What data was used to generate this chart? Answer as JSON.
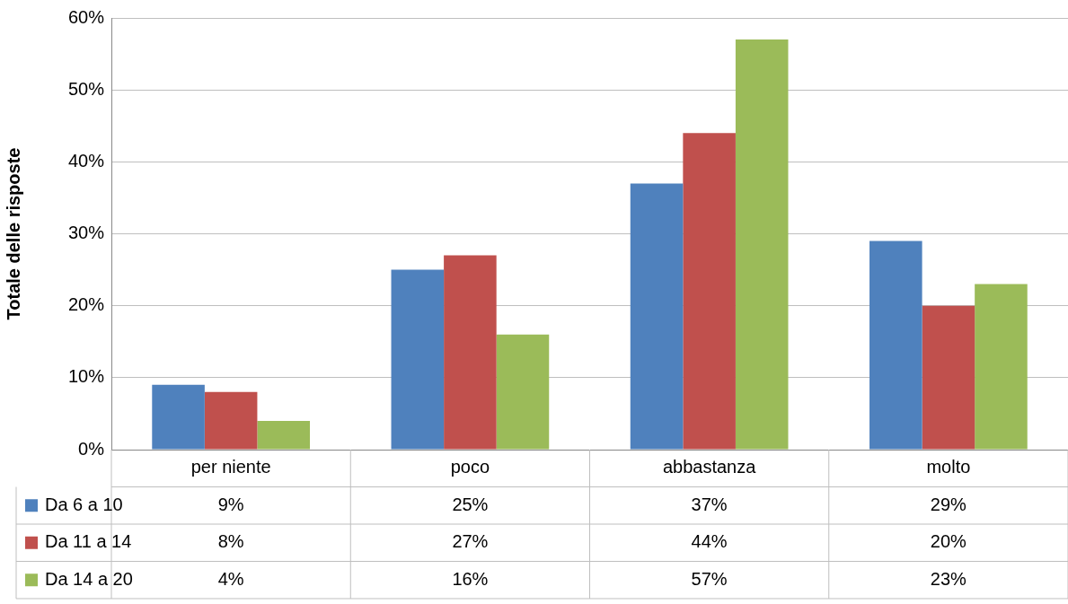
{
  "chart_data": {
    "type": "bar",
    "ylabel": "Totale delle risposte",
    "categories": [
      "per niente",
      "poco",
      "abbastanza",
      "molto"
    ],
    "series": [
      {
        "name": "Da 6 a 10",
        "color": "#4f81bd",
        "values": [
          9,
          25,
          37,
          29
        ],
        "value_labels": [
          "9%",
          "25%",
          "37%",
          "29%"
        ]
      },
      {
        "name": "Da 11 a 14",
        "color": "#c0504d",
        "values": [
          8,
          27,
          44,
          20
        ],
        "value_labels": [
          "8%",
          "27%",
          "44%",
          "20%"
        ]
      },
      {
        "name": "Da 14 a 20",
        "color": "#9bbb59",
        "values": [
          4,
          16,
          57,
          23
        ],
        "value_labels": [
          "4%",
          "16%",
          "57%",
          "23%"
        ]
      }
    ],
    "ylim": [
      0,
      60
    ],
    "yticks": [
      {
        "value": 0,
        "label": "0%"
      },
      {
        "value": 10,
        "label": "10%"
      },
      {
        "value": 20,
        "label": "20%"
      },
      {
        "value": 30,
        "label": "30%"
      },
      {
        "value": 40,
        "label": "40%"
      },
      {
        "value": 50,
        "label": "50%"
      },
      {
        "value": 60,
        "label": "60%"
      }
    ],
    "grid": "y",
    "legend": "bottom"
  }
}
